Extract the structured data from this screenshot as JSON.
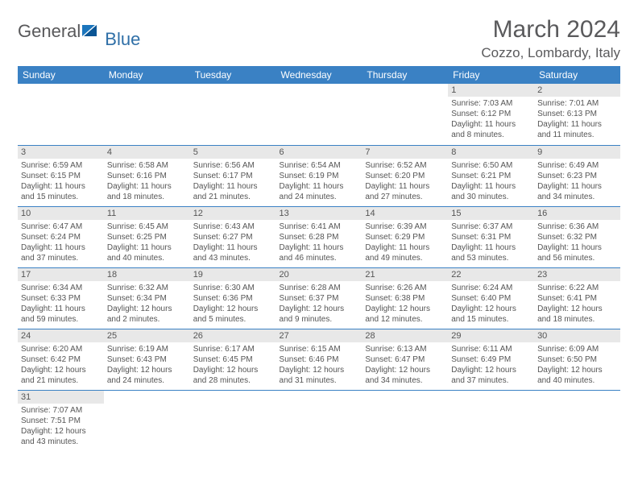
{
  "logo": {
    "text_general": "General",
    "text_blue": "Blue",
    "flag_color1": "#1b75bc",
    "flag_color2": "#0a5595"
  },
  "header": {
    "month_title": "March 2024",
    "location": "Cozzo, Lombardy, Italy"
  },
  "colors": {
    "header_bg": "#3a81c4",
    "header_text": "#ffffff",
    "daynum_bg": "#e8e8e8",
    "border": "#3a81c4",
    "text": "#555555"
  },
  "weekdays": [
    "Sunday",
    "Monday",
    "Tuesday",
    "Wednesday",
    "Thursday",
    "Friday",
    "Saturday"
  ],
  "weeks": [
    [
      null,
      null,
      null,
      null,
      null,
      {
        "day": "1",
        "sunrise": "Sunrise: 7:03 AM",
        "sunset": "Sunset: 6:12 PM",
        "daylight": "Daylight: 11 hours and 8 minutes."
      },
      {
        "day": "2",
        "sunrise": "Sunrise: 7:01 AM",
        "sunset": "Sunset: 6:13 PM",
        "daylight": "Daylight: 11 hours and 11 minutes."
      }
    ],
    [
      {
        "day": "3",
        "sunrise": "Sunrise: 6:59 AM",
        "sunset": "Sunset: 6:15 PM",
        "daylight": "Daylight: 11 hours and 15 minutes."
      },
      {
        "day": "4",
        "sunrise": "Sunrise: 6:58 AM",
        "sunset": "Sunset: 6:16 PM",
        "daylight": "Daylight: 11 hours and 18 minutes."
      },
      {
        "day": "5",
        "sunrise": "Sunrise: 6:56 AM",
        "sunset": "Sunset: 6:17 PM",
        "daylight": "Daylight: 11 hours and 21 minutes."
      },
      {
        "day": "6",
        "sunrise": "Sunrise: 6:54 AM",
        "sunset": "Sunset: 6:19 PM",
        "daylight": "Daylight: 11 hours and 24 minutes."
      },
      {
        "day": "7",
        "sunrise": "Sunrise: 6:52 AM",
        "sunset": "Sunset: 6:20 PM",
        "daylight": "Daylight: 11 hours and 27 minutes."
      },
      {
        "day": "8",
        "sunrise": "Sunrise: 6:50 AM",
        "sunset": "Sunset: 6:21 PM",
        "daylight": "Daylight: 11 hours and 30 minutes."
      },
      {
        "day": "9",
        "sunrise": "Sunrise: 6:49 AM",
        "sunset": "Sunset: 6:23 PM",
        "daylight": "Daylight: 11 hours and 34 minutes."
      }
    ],
    [
      {
        "day": "10",
        "sunrise": "Sunrise: 6:47 AM",
        "sunset": "Sunset: 6:24 PM",
        "daylight": "Daylight: 11 hours and 37 minutes."
      },
      {
        "day": "11",
        "sunrise": "Sunrise: 6:45 AM",
        "sunset": "Sunset: 6:25 PM",
        "daylight": "Daylight: 11 hours and 40 minutes."
      },
      {
        "day": "12",
        "sunrise": "Sunrise: 6:43 AM",
        "sunset": "Sunset: 6:27 PM",
        "daylight": "Daylight: 11 hours and 43 minutes."
      },
      {
        "day": "13",
        "sunrise": "Sunrise: 6:41 AM",
        "sunset": "Sunset: 6:28 PM",
        "daylight": "Daylight: 11 hours and 46 minutes."
      },
      {
        "day": "14",
        "sunrise": "Sunrise: 6:39 AM",
        "sunset": "Sunset: 6:29 PM",
        "daylight": "Daylight: 11 hours and 49 minutes."
      },
      {
        "day": "15",
        "sunrise": "Sunrise: 6:37 AM",
        "sunset": "Sunset: 6:31 PM",
        "daylight": "Daylight: 11 hours and 53 minutes."
      },
      {
        "day": "16",
        "sunrise": "Sunrise: 6:36 AM",
        "sunset": "Sunset: 6:32 PM",
        "daylight": "Daylight: 11 hours and 56 minutes."
      }
    ],
    [
      {
        "day": "17",
        "sunrise": "Sunrise: 6:34 AM",
        "sunset": "Sunset: 6:33 PM",
        "daylight": "Daylight: 11 hours and 59 minutes."
      },
      {
        "day": "18",
        "sunrise": "Sunrise: 6:32 AM",
        "sunset": "Sunset: 6:34 PM",
        "daylight": "Daylight: 12 hours and 2 minutes."
      },
      {
        "day": "19",
        "sunrise": "Sunrise: 6:30 AM",
        "sunset": "Sunset: 6:36 PM",
        "daylight": "Daylight: 12 hours and 5 minutes."
      },
      {
        "day": "20",
        "sunrise": "Sunrise: 6:28 AM",
        "sunset": "Sunset: 6:37 PM",
        "daylight": "Daylight: 12 hours and 9 minutes."
      },
      {
        "day": "21",
        "sunrise": "Sunrise: 6:26 AM",
        "sunset": "Sunset: 6:38 PM",
        "daylight": "Daylight: 12 hours and 12 minutes."
      },
      {
        "day": "22",
        "sunrise": "Sunrise: 6:24 AM",
        "sunset": "Sunset: 6:40 PM",
        "daylight": "Daylight: 12 hours and 15 minutes."
      },
      {
        "day": "23",
        "sunrise": "Sunrise: 6:22 AM",
        "sunset": "Sunset: 6:41 PM",
        "daylight": "Daylight: 12 hours and 18 minutes."
      }
    ],
    [
      {
        "day": "24",
        "sunrise": "Sunrise: 6:20 AM",
        "sunset": "Sunset: 6:42 PM",
        "daylight": "Daylight: 12 hours and 21 minutes."
      },
      {
        "day": "25",
        "sunrise": "Sunrise: 6:19 AM",
        "sunset": "Sunset: 6:43 PM",
        "daylight": "Daylight: 12 hours and 24 minutes."
      },
      {
        "day": "26",
        "sunrise": "Sunrise: 6:17 AM",
        "sunset": "Sunset: 6:45 PM",
        "daylight": "Daylight: 12 hours and 28 minutes."
      },
      {
        "day": "27",
        "sunrise": "Sunrise: 6:15 AM",
        "sunset": "Sunset: 6:46 PM",
        "daylight": "Daylight: 12 hours and 31 minutes."
      },
      {
        "day": "28",
        "sunrise": "Sunrise: 6:13 AM",
        "sunset": "Sunset: 6:47 PM",
        "daylight": "Daylight: 12 hours and 34 minutes."
      },
      {
        "day": "29",
        "sunrise": "Sunrise: 6:11 AM",
        "sunset": "Sunset: 6:49 PM",
        "daylight": "Daylight: 12 hours and 37 minutes."
      },
      {
        "day": "30",
        "sunrise": "Sunrise: 6:09 AM",
        "sunset": "Sunset: 6:50 PM",
        "daylight": "Daylight: 12 hours and 40 minutes."
      }
    ],
    [
      {
        "day": "31",
        "sunrise": "Sunrise: 7:07 AM",
        "sunset": "Sunset: 7:51 PM",
        "daylight": "Daylight: 12 hours and 43 minutes."
      },
      null,
      null,
      null,
      null,
      null,
      null
    ]
  ]
}
